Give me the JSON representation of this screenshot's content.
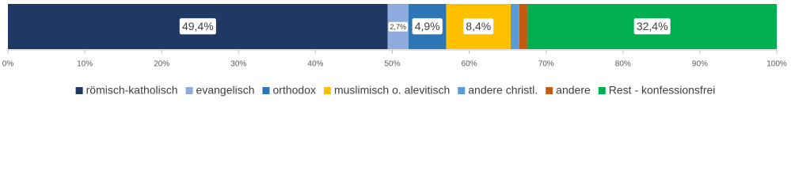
{
  "chart_data": {
    "type": "stacked-bar-horizontal",
    "categories": [
      null
    ],
    "series": [
      {
        "name": "römisch-katholisch",
        "color": "#203864",
        "values": [
          49.4
        ],
        "value_labels": [
          "49,4%"
        ]
      },
      {
        "name": "evangelisch",
        "color": "#8faadc",
        "values": [
          2.7
        ],
        "value_labels": [
          "2,7%"
        ]
      },
      {
        "name": "orthodox",
        "color": "#2e75b6",
        "values": [
          4.9
        ],
        "value_labels": [
          "4,9%"
        ]
      },
      {
        "name": "muslimisch o. alevitisch",
        "color": "#ffc000",
        "values": [
          8.4
        ],
        "value_labels": [
          "8,4%"
        ]
      },
      {
        "name": "andere christl.",
        "color": "#5b9bd5",
        "values": [
          1.1
        ]
      },
      {
        "name": "andere",
        "color": "#c55a11",
        "values": [
          1.1
        ]
      },
      {
        "name": "Rest - konfessionsfrei",
        "color": "#00b050",
        "values": [
          32.4
        ],
        "value_labels": [
          "32,4%"
        ]
      }
    ],
    "xlim": [
      0,
      100
    ],
    "xticks": [
      {
        "value": 0,
        "label": "0%"
      },
      {
        "value": 10,
        "label": "10%"
      },
      {
        "value": 20,
        "label": "20%"
      },
      {
        "value": 30,
        "label": "30%"
      },
      {
        "value": 40,
        "label": "40%"
      },
      {
        "value": 50,
        "label": "50%"
      },
      {
        "value": 60,
        "label": "60%"
      },
      {
        "value": 70,
        "label": "70%"
      },
      {
        "value": 80,
        "label": "80%"
      },
      {
        "value": 90,
        "label": "90%"
      },
      {
        "value": 100,
        "label": "100%"
      }
    ],
    "grid": false,
    "legend": "bottom"
  }
}
